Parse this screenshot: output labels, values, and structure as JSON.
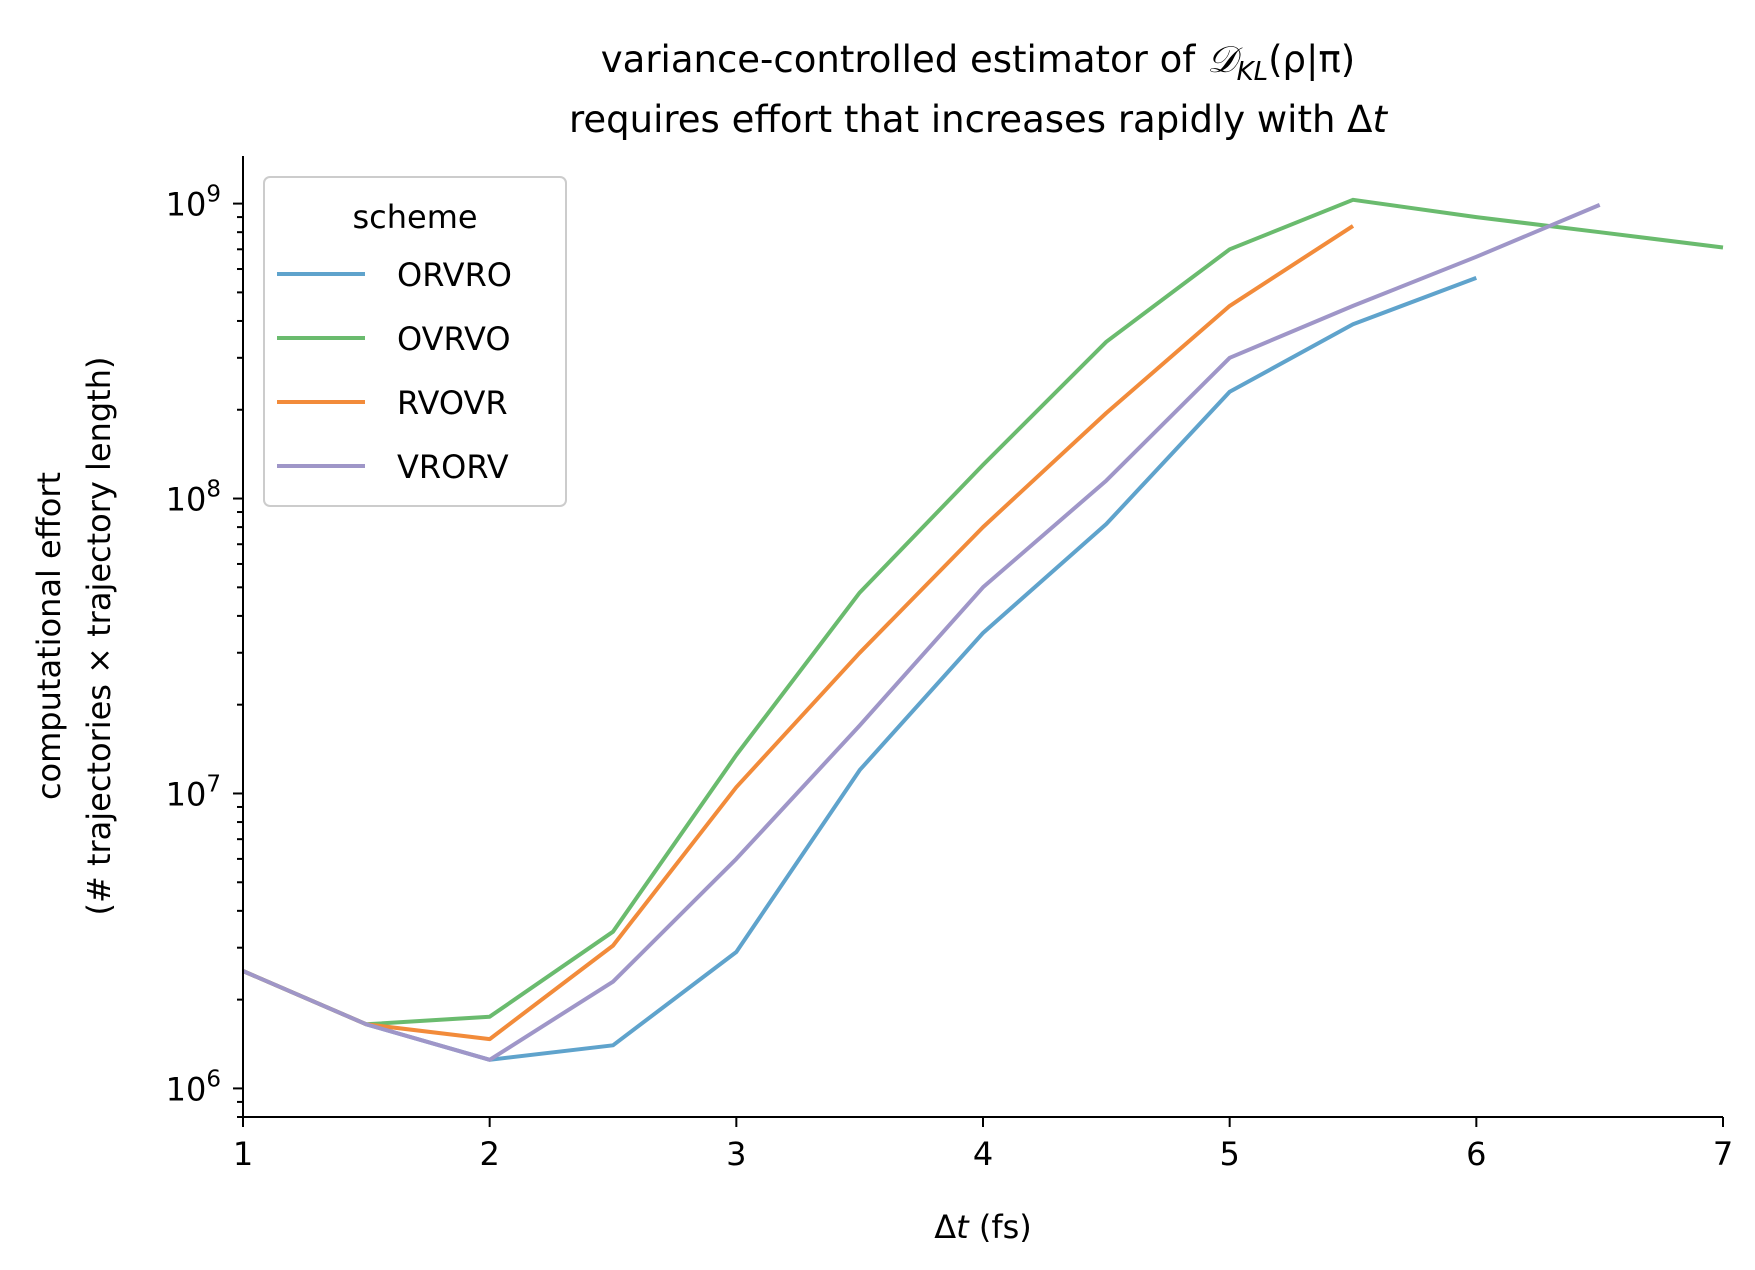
{
  "chart_data": {
    "type": "line",
    "title": [
      "variance-controlled estimator of 𝒟KL(ρ|π)",
      "requires effort that increases rapidly with Δt"
    ],
    "title_parts": {
      "line1_prefix": "variance-controlled estimator of ",
      "line1_D": "𝒟",
      "line1_sub": "KL",
      "line1_suffix": "(ρ|π)",
      "line2_prefix": "requires effort that increases rapidly with Δ",
      "line2_t": "t"
    },
    "xlabel": "Δt (fs)",
    "xlabel_parts": {
      "prefix": "Δ",
      "t": "t",
      "suffix": " (fs)"
    },
    "ylabel": [
      "computational effort",
      "(# trajectories × trajectory length)"
    ],
    "xlim": [
      1,
      7
    ],
    "ylim": [
      800000,
      1450000000
    ],
    "yscale": "log",
    "xticks": [
      1,
      2,
      3,
      4,
      5,
      6,
      7
    ],
    "xtick_labels": [
      "1",
      "2",
      "3",
      "4",
      "5",
      "6",
      "7"
    ],
    "yticks": [
      1000000,
      10000000,
      100000000,
      1000000000
    ],
    "ytick_labels": [
      {
        "base": "10",
        "exp": "6"
      },
      {
        "base": "10",
        "exp": "7"
      },
      {
        "base": "10",
        "exp": "8"
      },
      {
        "base": "10",
        "exp": "9"
      }
    ],
    "legend": {
      "title": "scheme",
      "placement": "upper-left"
    },
    "series": [
      {
        "name": "ORVRO",
        "color": "#5fa3cc",
        "x": [
          1,
          1.5,
          2,
          2.5,
          3,
          3.5,
          4,
          4.5,
          5,
          5.5,
          6
        ],
        "y": [
          2500000,
          1650000,
          1250000,
          1400000,
          2900000,
          12000000,
          35000000,
          82000000,
          230000000,
          390000000,
          560000000
        ]
      },
      {
        "name": "OVRVO",
        "color": "#6abb6e",
        "x": [
          1,
          1.5,
          2,
          2.5,
          3,
          3.5,
          4,
          4.5,
          5,
          5.5,
          6,
          6.5,
          7
        ],
        "y": [
          2500000,
          1650000,
          1750000,
          3400000,
          13500000,
          48000000,
          130000000,
          340000000,
          700000000,
          1030000000,
          900000000,
          800000000,
          710000000
        ]
      },
      {
        "name": "RVOVR",
        "color": "#f28b3a",
        "x": [
          1,
          1.5,
          2,
          2.5,
          3,
          3.5,
          4,
          4.5,
          5,
          5.5
        ],
        "y": [
          2500000,
          1650000,
          1470000,
          3050000,
          10500000,
          30000000,
          80000000,
          195000000,
          450000000,
          840000000
        ]
      },
      {
        "name": "VRORV",
        "color": "#9f96c8",
        "x": [
          1,
          1.5,
          2,
          2.5,
          3,
          3.5,
          4,
          4.5,
          5,
          5.5,
          6,
          6.5
        ],
        "y": [
          2500000,
          1650000,
          1250000,
          2300000,
          6000000,
          17000000,
          50000000,
          115000000,
          300000000,
          450000000,
          660000000,
          990000000
        ]
      }
    ]
  }
}
